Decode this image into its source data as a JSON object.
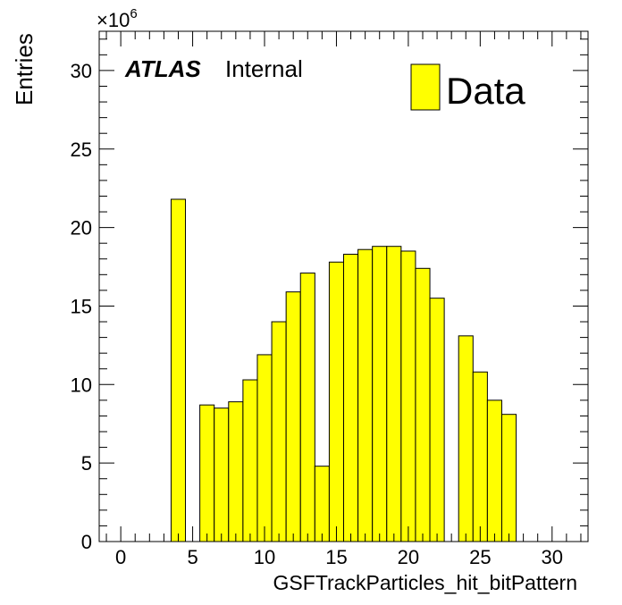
{
  "chart_data": {
    "type": "bar",
    "title": "",
    "xlabel": "GSFTrackParticles_hit_bitPattern",
    "ylabel": "Entries",
    "y_multiplier_label": "×10",
    "y_multiplier_exponent": "6",
    "xlim": [
      -1.5,
      32.5
    ],
    "ylim": [
      0,
      32.5
    ],
    "xticks": [
      0,
      5,
      10,
      15,
      20,
      25,
      30
    ],
    "yticks": [
      0,
      5,
      10,
      15,
      20,
      25,
      30
    ],
    "bin_width": 1,
    "bin_centers": [
      0,
      1,
      2,
      3,
      4,
      5,
      6,
      7,
      8,
      9,
      10,
      11,
      12,
      13,
      14,
      15,
      16,
      17,
      18,
      19,
      20,
      21,
      22,
      23,
      24,
      25,
      26,
      27,
      28,
      29,
      30,
      31,
      32
    ],
    "values": [
      0,
      0,
      0,
      0,
      21.8,
      0,
      8.7,
      8.5,
      8.9,
      10.3,
      11.9,
      14.0,
      15.9,
      17.1,
      4.8,
      17.8,
      18.3,
      18.6,
      18.8,
      18.8,
      18.5,
      17.4,
      15.5,
      0,
      13.1,
      10.8,
      9.0,
      8.1,
      0,
      0,
      0,
      0,
      0
    ],
    "series": [
      {
        "name": "Data",
        "color": "#ffff00"
      }
    ],
    "legend_position": "top-right",
    "grid": false,
    "bar_color": "#ffff00",
    "edge_color": "#000000"
  },
  "annotation": {
    "atlas_label": "ATLAS",
    "internal_label": "Internal"
  }
}
